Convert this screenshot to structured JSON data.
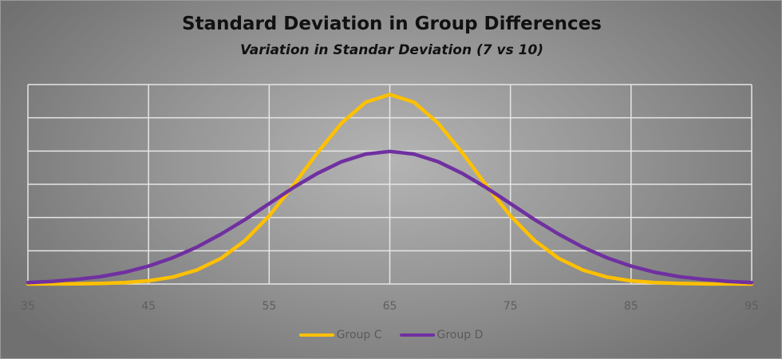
{
  "chart_data": {
    "type": "line",
    "title": "Standard Deviation in Group Differences",
    "subtitle": "Variation in Standar Deviation (7 vs 10)",
    "xlabel": "",
    "ylabel": "",
    "xlim": [
      35,
      95
    ],
    "ylim": [
      0,
      0.06
    ],
    "x_ticks": [
      "35",
      "45",
      "55",
      "65",
      "75",
      "85",
      "95"
    ],
    "y_gridlines": [
      0,
      0.01,
      0.02,
      0.03,
      0.04,
      0.05,
      0.06
    ],
    "grid": true,
    "legend_position": "bottom",
    "x": [
      35,
      37,
      39,
      41,
      43,
      45,
      47,
      49,
      51,
      53,
      55,
      57,
      59,
      61,
      63,
      65,
      67,
      69,
      71,
      73,
      75,
      77,
      79,
      81,
      83,
      85,
      87,
      89,
      91,
      93,
      95
    ],
    "series": [
      {
        "name": "Group C",
        "color": "#ffc000",
        "values": [
          1e-05,
          2e-05,
          6e-05,
          0.00016,
          0.00041,
          0.00096,
          0.0021,
          0.0042,
          0.0077,
          0.0131,
          0.0205,
          0.0297,
          0.0395,
          0.0484,
          0.0547,
          0.057,
          0.0547,
          0.0484,
          0.0395,
          0.0297,
          0.0205,
          0.0131,
          0.0077,
          0.0042,
          0.0021,
          0.00096,
          0.00041,
          0.00016,
          6e-05,
          2e-05,
          1e-05
        ]
      },
      {
        "name": "Group D",
        "color": "#7030a0",
        "values": [
          0.0004,
          0.0008,
          0.0014,
          0.0022,
          0.0035,
          0.0054,
          0.0079,
          0.0111,
          0.015,
          0.0194,
          0.0242,
          0.029,
          0.0333,
          0.0368,
          0.0391,
          0.0399,
          0.0391,
          0.0368,
          0.0333,
          0.029,
          0.0242,
          0.0194,
          0.015,
          0.0111,
          0.0079,
          0.0054,
          0.0035,
          0.0022,
          0.0014,
          0.0008,
          0.0004
        ]
      }
    ]
  }
}
